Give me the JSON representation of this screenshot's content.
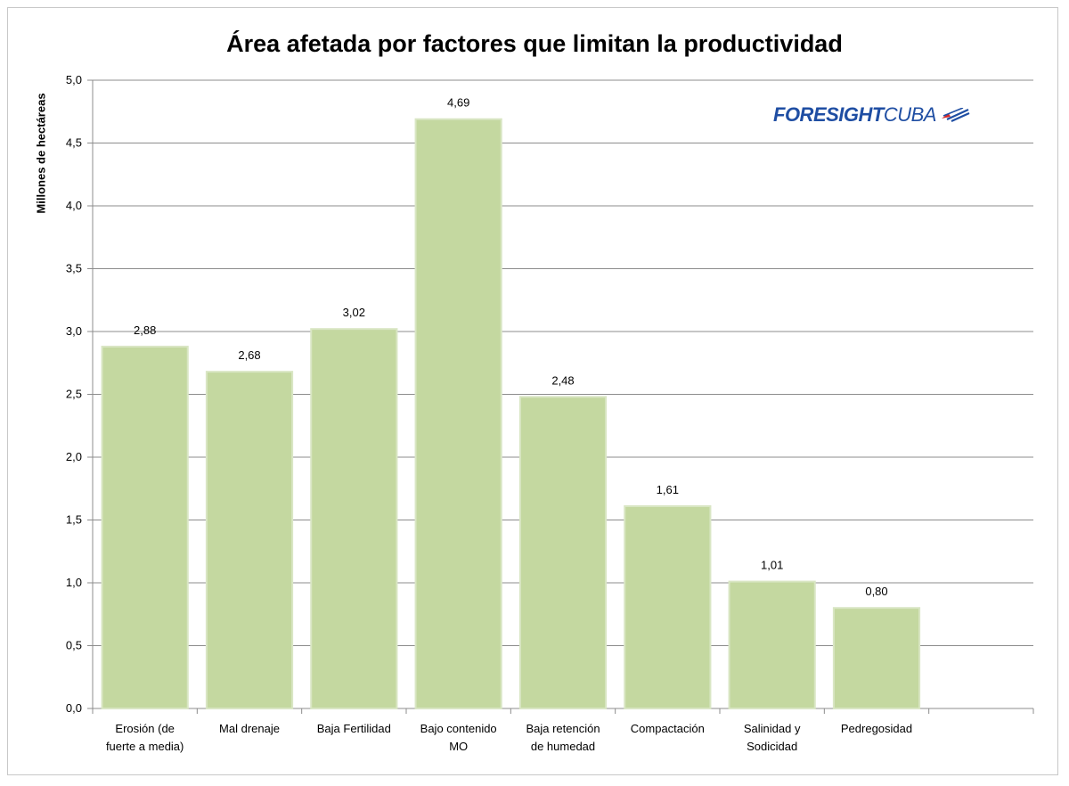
{
  "chart_data": {
    "type": "bar",
    "title": "Área afetada por factores que limitan la productividad",
    "xlabel": "",
    "ylabel": "Millones de hectáreas",
    "ylim": [
      0,
      5
    ],
    "ytick_step": 0.5,
    "yticks": [
      "0,0",
      "0,5",
      "1,0",
      "1,5",
      "2,0",
      "2,5",
      "3,0",
      "3,5",
      "4,0",
      "4,5",
      "5,0"
    ],
    "grid": true,
    "legend": "none",
    "bar_color": "#c4d8a0",
    "categories": [
      [
        "Erosión (de",
        "fuerte a media)"
      ],
      [
        "Mal drenaje"
      ],
      [
        "Baja Fertilidad"
      ],
      [
        "Bajo contenido",
        "MO"
      ],
      [
        "Baja retención",
        "de humedad"
      ],
      [
        "Compactación"
      ],
      [
        "Salinidad y",
        "Sodicidad"
      ],
      [
        "Pedregosidad"
      ]
    ],
    "values": [
      2.88,
      2.68,
      3.02,
      4.69,
      2.48,
      1.61,
      1.01,
      0.8
    ],
    "value_labels": [
      "2,88",
      "2,68",
      "3,02",
      "4,69",
      "2,48",
      "1,61",
      "1,01",
      "0,80"
    ],
    "empty_slots_after": 1
  },
  "logo": {
    "bold_text": "FORESIGHT",
    "light_text": "CUBA",
    "color": "#1f4ea3",
    "flag_red": "#d62828"
  }
}
